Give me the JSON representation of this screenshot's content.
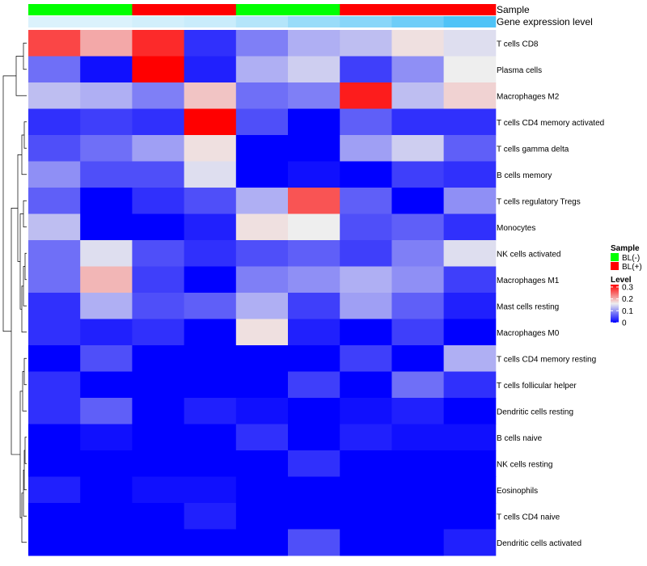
{
  "chart_data": {
    "type": "heatmap",
    "annotation_labels": [
      "Sample",
      "Gene expression level"
    ],
    "sample_groups": [
      "BL(-)",
      "BL(-)",
      "BL(+)",
      "BL(+)",
      "BL(-)",
      "BL(-)",
      "BL(+)",
      "BL(+)",
      "BL(+)"
    ],
    "expression_level": [
      0.97,
      0.97,
      0.95,
      0.93,
      0.88,
      0.82,
      0.78,
      0.72,
      0.65
    ],
    "rows": [
      "T cells CD8",
      "Plasma cells",
      "Macrophages M2",
      "T cells CD4 memory activated",
      "T cells gamma delta",
      "B cells memory",
      "T cells regulatory  Tregs",
      "Monocytes",
      "NK cells activated",
      "Macrophages M1",
      "Mast cells resting",
      "Macrophages M0",
      "T cells CD4 memory resting",
      "T cells follicular helper",
      "Dendritic cells resting",
      "B cells naive",
      "NK cells resting",
      "Eosinophils",
      "T cells CD4 naive",
      "Dendritic cells activated"
    ],
    "values": [
      [
        0.27,
        0.2,
        0.29,
        0.03,
        0.08,
        0.11,
        0.12,
        0.16,
        0.14
      ],
      [
        0.07,
        0.01,
        0.32,
        0.02,
        0.11,
        0.13,
        0.04,
        0.09,
        0.15
      ],
      [
        0.12,
        0.11,
        0.08,
        0.18,
        0.07,
        0.08,
        0.3,
        0.12,
        0.17
      ],
      [
        0.03,
        0.04,
        0.03,
        0.32,
        0.05,
        0.0,
        0.06,
        0.03,
        0.03
      ],
      [
        0.05,
        0.07,
        0.1,
        0.16,
        0.0,
        0.0,
        0.1,
        0.13,
        0.06
      ],
      [
        0.09,
        0.05,
        0.05,
        0.14,
        0.0,
        0.01,
        0.0,
        0.04,
        0.03
      ],
      [
        0.06,
        0.0,
        0.03,
        0.05,
        0.11,
        0.26,
        0.06,
        0.0,
        0.09
      ],
      [
        0.12,
        0.0,
        0.0,
        0.02,
        0.16,
        0.15,
        0.05,
        0.06,
        0.03
      ],
      [
        0.07,
        0.14,
        0.05,
        0.03,
        0.05,
        0.06,
        0.04,
        0.08,
        0.14
      ],
      [
        0.07,
        0.19,
        0.04,
        0.0,
        0.08,
        0.09,
        0.11,
        0.09,
        0.04
      ],
      [
        0.03,
        0.11,
        0.05,
        0.06,
        0.11,
        0.04,
        0.1,
        0.06,
        0.02
      ],
      [
        0.03,
        0.02,
        0.03,
        0.0,
        0.16,
        0.02,
        0.0,
        0.04,
        0.0
      ],
      [
        0.0,
        0.05,
        0.0,
        0.0,
        0.0,
        0.0,
        0.04,
        0.0,
        0.11
      ],
      [
        0.03,
        0.0,
        0.0,
        0.0,
        0.0,
        0.04,
        0.0,
        0.07,
        0.03
      ],
      [
        0.03,
        0.06,
        0.0,
        0.02,
        0.01,
        0.0,
        0.01,
        0.02,
        0.0
      ],
      [
        0.0,
        0.01,
        0.0,
        0.0,
        0.03,
        0.0,
        0.02,
        0.01,
        0.01
      ],
      [
        0.0,
        0.0,
        0.0,
        0.0,
        0.0,
        0.03,
        0.0,
        0.0,
        0.0
      ],
      [
        0.02,
        0.0,
        0.01,
        0.01,
        0.0,
        0.0,
        0.0,
        0.0,
        0.0
      ],
      [
        0.0,
        0.0,
        0.0,
        0.02,
        0.0,
        0.0,
        0.0,
        0.0,
        0.0
      ],
      [
        0.0,
        0.0,
        0.0,
        0.0,
        0.0,
        0.05,
        0.0,
        0.0,
        0.02
      ]
    ],
    "color_scale": {
      "min": 0,
      "mid": 0.15,
      "max": 0.32,
      "low_color": "#0000ff",
      "mid_color": "#eeeeee",
      "high_color": "#ff0000"
    },
    "expression_colors": {
      "high": "#e8f6fc",
      "low": "#4fc3f7"
    },
    "legend": {
      "sample_title": "Sample",
      "sample_items": [
        {
          "label": "BL(-)",
          "color": "#00ff00"
        },
        {
          "label": "BL(+)",
          "color": "#ff0000"
        }
      ],
      "level_title": "Level",
      "level_ticks": [
        0.3,
        0.2,
        0.1,
        0
      ],
      "level_tick_labels": [
        "0.3",
        "0.2",
        "0.1",
        "0"
      ]
    },
    "dendrogram": "row clustering tree on left"
  }
}
